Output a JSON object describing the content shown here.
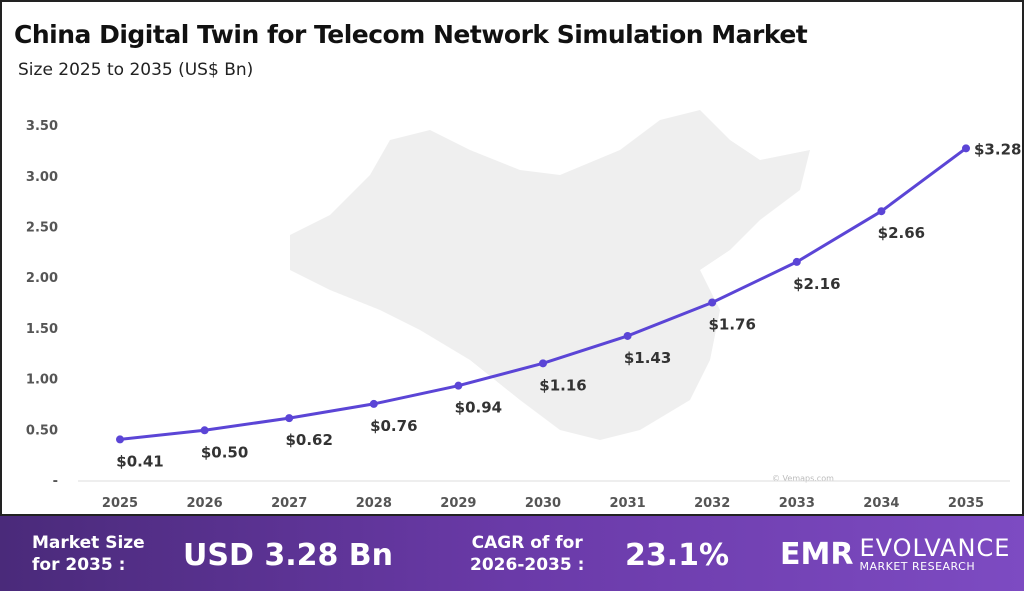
{
  "chart_data": {
    "type": "line",
    "title": "China Digital Twin for Telecom Network Simulation Market",
    "subtitle": "Size 2025 to 2035 (US$ Bn)",
    "x": [
      "2025",
      "2026",
      "2027",
      "2028",
      "2029",
      "2030",
      "2031",
      "2032",
      "2033",
      "2034",
      "2035"
    ],
    "values": [
      0.41,
      0.5,
      0.62,
      0.76,
      0.94,
      1.16,
      1.43,
      1.76,
      2.16,
      2.66,
      3.28
    ],
    "data_labels": [
      "$0.41",
      "$0.50",
      "$0.62",
      "$0.76",
      "$0.94",
      "$1.16",
      "$1.43",
      "$1.76",
      "$2.16",
      "$2.66",
      "$3.28"
    ],
    "y_ticks": [
      "-",
      "0.50",
      "1.00",
      "1.50",
      "2.00",
      "2.50",
      "3.00",
      "3.50"
    ],
    "ylim": [
      0,
      3.5
    ],
    "grid": false,
    "line_color": "#5b45d6",
    "watermark": "© Vemaps.com"
  },
  "footer": {
    "market_size_label": "Market Size",
    "market_size_label2": "for 2035 :",
    "market_size_value": "USD 3.28 Bn",
    "cagr_label": "CAGR of for",
    "cagr_label2": "2026-2035 :",
    "cagr_value": "23.1%",
    "brand_logo": "EMR",
    "brand_name": "EVOLVANCE",
    "brand_sub": "MARKET RESEARCH"
  }
}
